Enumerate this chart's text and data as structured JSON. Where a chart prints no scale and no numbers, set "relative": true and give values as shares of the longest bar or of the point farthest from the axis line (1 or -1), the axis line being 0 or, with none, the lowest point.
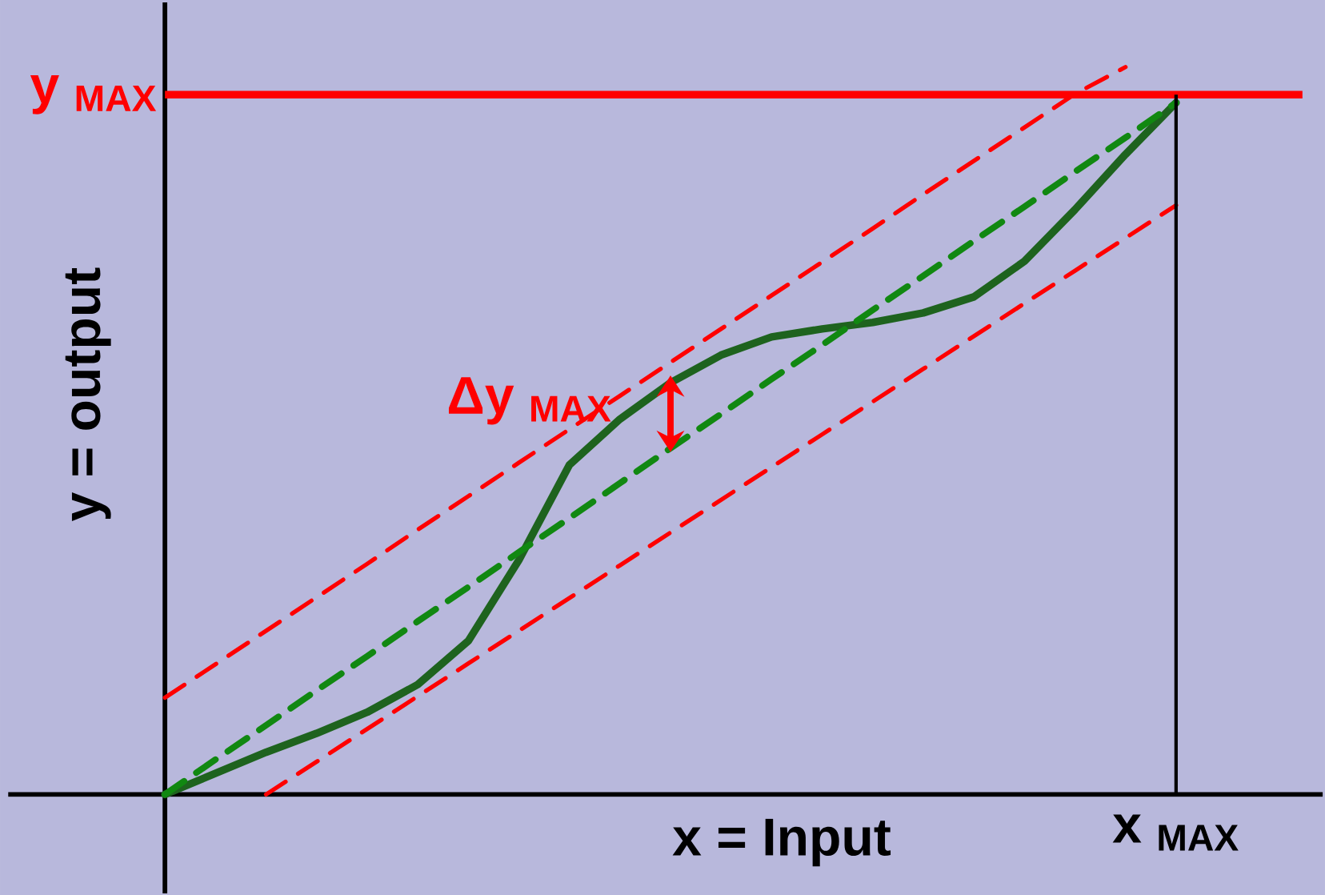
{
  "chart_data": {
    "type": "line",
    "relative": true,
    "xlabel": "x = Input",
    "ylabel": "y = output",
    "marker": "none",
    "categories": [
      null,
      null,
      null,
      null,
      null,
      null,
      null,
      null,
      null,
      null,
      null,
      null,
      null,
      null,
      null,
      null,
      null,
      null,
      null,
      null,
      null
    ],
    "series": [
      {
        "color": "#1e631e",
        "line_style": "solid",
        "values": [
          0,
          0.029,
          0.058,
          0.084,
          0.113,
          0.151,
          0.211,
          0.322,
          0.453,
          0.516,
          0.566,
          0.604,
          0.629,
          0.64,
          0.649,
          0.662,
          0.684,
          0.733,
          0.804,
          0.88,
          0.951
        ]
      },
      {
        "color": "#118811",
        "line_style": "dashed",
        "values": [
          0,
          0.048,
          0.095,
          0.143,
          0.19,
          0.238,
          0.285,
          0.333,
          0.38,
          0.428,
          0.476,
          0.523,
          0.571,
          0.618,
          0.666,
          0.713,
          0.761,
          0.808,
          0.856,
          0.903,
          0.951
        ]
      },
      {
        "color": "#ff0000",
        "line_style": "dashed",
        "values": [
          0.133,
          0.179,
          0.225,
          0.271,
          0.317,
          0.364,
          0.41,
          0.456,
          0.502,
          0.548,
          0.594,
          0.64,
          0.686,
          0.732,
          0.778,
          0.825,
          0.871,
          0.917,
          0.963,
          1.0,
          null
        ]
      },
      {
        "color": "#ff0000",
        "line_style": "dashed",
        "values": [
          null,
          null,
          0,
          0.045,
          0.09,
          0.135,
          0.18,
          0.225,
          0.27,
          0.315,
          0.36,
          0.405,
          0.45,
          0.495,
          0.54,
          0.585,
          0.63,
          0.675,
          0.72,
          0.765,
          0.81
        ]
      }
    ],
    "ref_lines": [
      {
        "axis": "y",
        "value": 0.962,
        "label": "y $_{MAX}$",
        "color": "#ff0000"
      }
    ],
    "annotations": [
      "Δy $_{MAX}$",
      "x $_{MAX}$"
    ]
  }
}
